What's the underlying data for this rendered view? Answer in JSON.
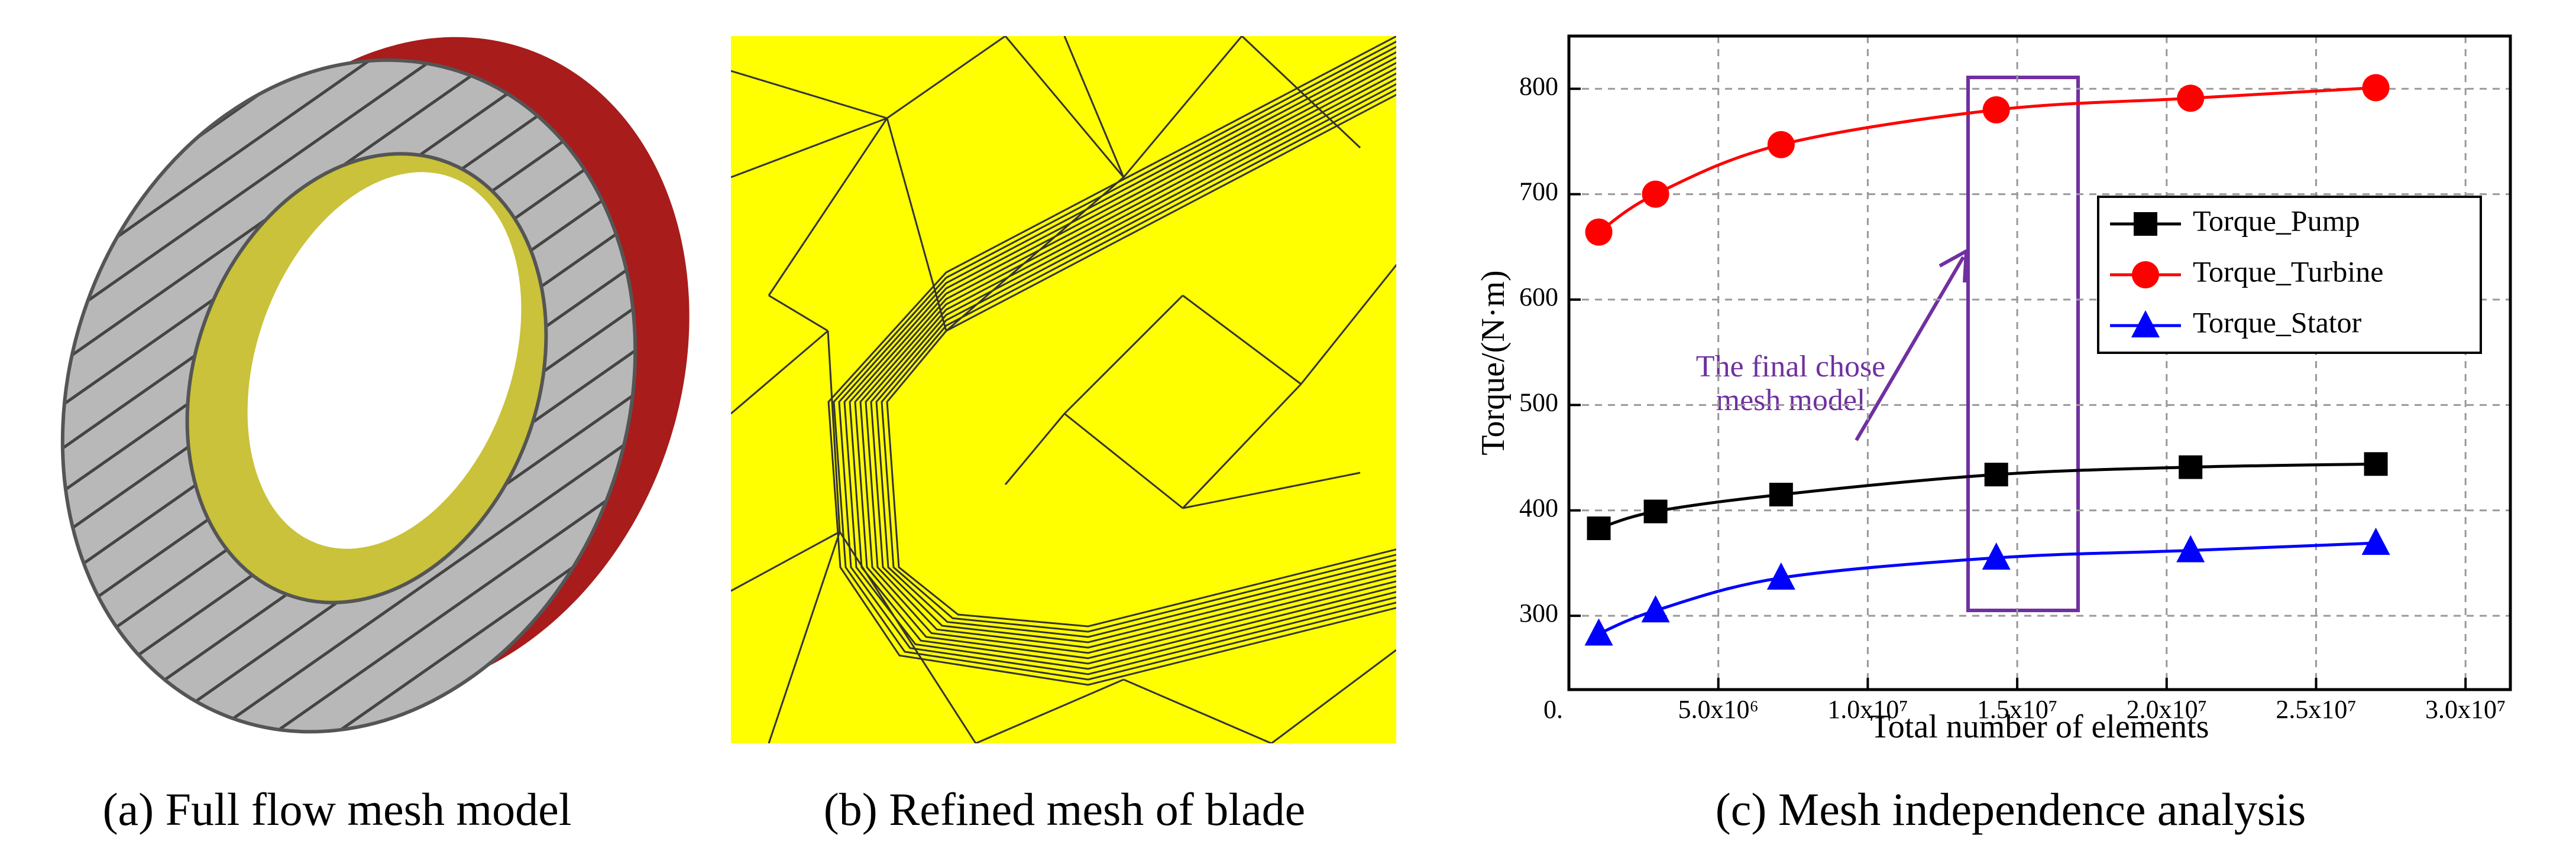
{
  "captions": [
    "(a) Full flow mesh model",
    "(b) Refined mesh of blade",
    "(c) Mesh independence analysis"
  ],
  "chart_data": {
    "type": "line",
    "ylabel": "Torque/(N·m)",
    "xlabel": "Total number of elements",
    "annotation": [
      "The final chose",
      "mesh model"
    ],
    "x": [
      1000000,
      2900000,
      7100000,
      14300000,
      20800000,
      27000000
    ],
    "series": [
      {
        "name": "Torque_Pump",
        "color": "#000000",
        "marker": "square",
        "values": [
          383,
          399,
          415,
          434,
          441,
          444
        ]
      },
      {
        "name": "Torque_Turbine",
        "color": "#ff0000",
        "marker": "circle",
        "values": [
          664,
          700,
          747,
          780,
          791,
          801
        ]
      },
      {
        "name": "Torque_Stator",
        "color": "#0000ff",
        "marker": "triangle",
        "values": [
          283,
          305,
          336,
          355,
          362,
          369
        ]
      }
    ],
    "xlim": [
      0,
      31500000
    ],
    "xticks": [
      {
        "value": 0,
        "label": "0."
      },
      {
        "value": 5000000,
        "label": "5.0x10⁶"
      },
      {
        "value": 10000000,
        "label": "1.0x10⁷"
      },
      {
        "value": 15000000,
        "label": "1.5x10⁷"
      },
      {
        "value": 20000000,
        "label": "2.0x10⁷"
      },
      {
        "value": 25000000,
        "label": "2.5x10⁷"
      },
      {
        "value": 30000000,
        "label": "3.0x10⁷"
      }
    ],
    "ylim": [
      230,
      850
    ],
    "yticks": [
      300,
      400,
      500,
      600,
      700,
      800
    ],
    "grid": true,
    "legend": "upper right"
  }
}
